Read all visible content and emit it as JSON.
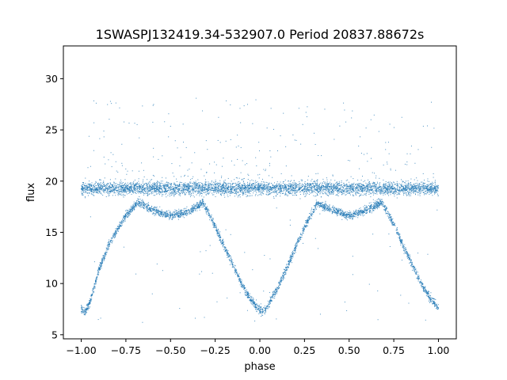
{
  "chart_data": {
    "type": "scatter",
    "title": "1SWASPJ132419.34-532907.0 Period 20837.88672s",
    "xlabel": "phase",
    "ylabel": "flux",
    "xlim": [
      -1.1,
      1.1
    ],
    "ylim": [
      4.6,
      33.2
    ],
    "xticks": [
      -1.0,
      -0.75,
      -0.5,
      -0.25,
      0.0,
      0.25,
      0.5,
      0.75,
      1.0
    ],
    "xtick_labels": [
      "−1.00",
      "−0.75",
      "−0.50",
      "−0.25",
      "0.00",
      "0.25",
      "0.50",
      "0.75",
      "1.00"
    ],
    "yticks": [
      5,
      10,
      15,
      20,
      25,
      30
    ],
    "ytick_labels": [
      "5",
      "10",
      "15",
      "20",
      "25",
      "30"
    ],
    "grid": false,
    "marker_color": "#1f77b4",
    "series": [
      {
        "description": "sampled points along phased light curve",
        "x": [
          -1.0,
          -0.975,
          -0.95,
          -0.925,
          -0.9,
          -0.85,
          -0.8,
          -0.75,
          -0.7,
          -0.68,
          -0.6,
          -0.5,
          -0.4,
          -0.32,
          -0.3,
          -0.25,
          -0.2,
          -0.15,
          -0.1,
          -0.05,
          0.0,
          0.025,
          0.05,
          0.1,
          0.15,
          0.2,
          0.25,
          0.3,
          0.32,
          0.4,
          0.5,
          0.6,
          0.68,
          0.7,
          0.75,
          0.8,
          0.85,
          0.9,
          0.95,
          1.0
        ],
        "y": [
          7.5,
          7.3,
          8.2,
          9.8,
          11.4,
          13.6,
          15.2,
          16.6,
          17.6,
          17.9,
          17.2,
          16.6,
          17.0,
          17.9,
          17.3,
          15.6,
          13.6,
          11.8,
          9.9,
          8.4,
          7.4,
          7.3,
          8.0,
          9.6,
          11.5,
          13.5,
          15.5,
          17.2,
          17.9,
          17.2,
          16.6,
          17.2,
          17.9,
          17.4,
          15.8,
          13.8,
          12.0,
          10.1,
          8.7,
          7.6
        ]
      },
      {
        "description": "flat band of points",
        "x": [
          -1.0,
          -0.5,
          0.0,
          0.5,
          1.0
        ],
        "y": [
          19.3,
          19.3,
          19.3,
          19.3,
          19.3
        ]
      }
    ]
  }
}
